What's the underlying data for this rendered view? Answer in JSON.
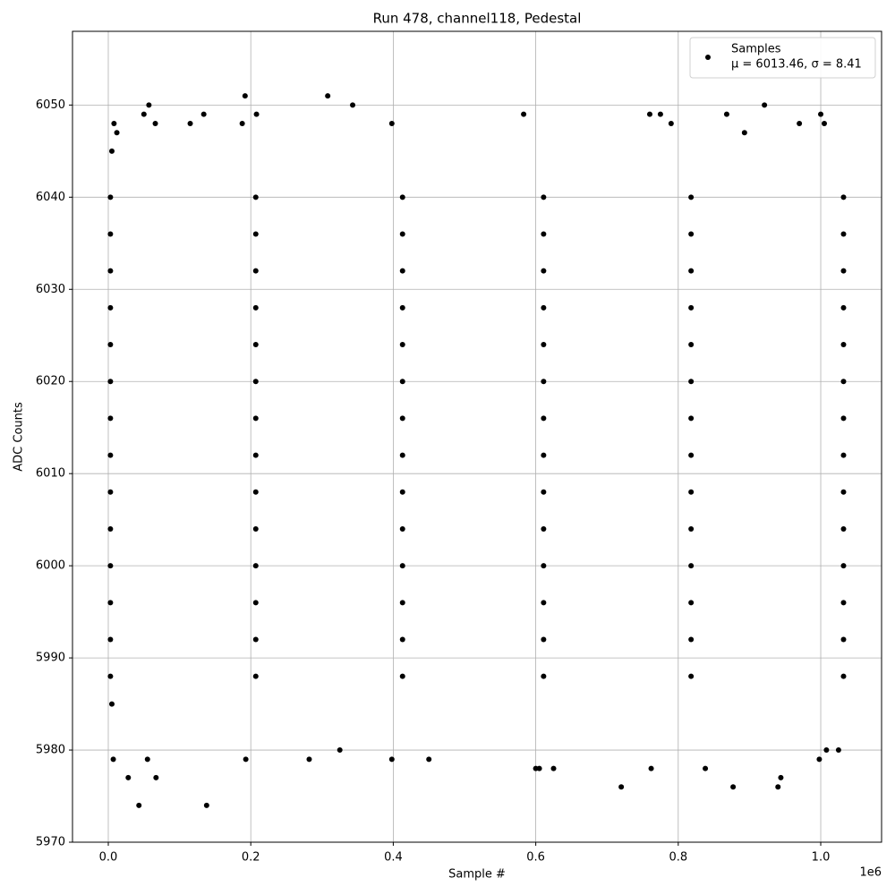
{
  "chart_data": {
    "type": "scatter",
    "title": "Run 478, channel118, Pedestal",
    "x_label": "Sample #",
    "y_label": "ADC Counts",
    "x_offset_label": "1e6",
    "xlim": [
      -50250,
      1085400
    ],
    "ylim": [
      5970,
      6058
    ],
    "xticks": [
      {
        "value": 0,
        "label": "0.0"
      },
      {
        "value": 200000,
        "label": "0.2"
      },
      {
        "value": 400000,
        "label": "0.4"
      },
      {
        "value": 600000,
        "label": "0.6"
      },
      {
        "value": 800000,
        "label": "0.8"
      },
      {
        "value": 1000000,
        "label": "1.0"
      }
    ],
    "yticks": [
      5970,
      5980,
      5990,
      6000,
      6010,
      6020,
      6030,
      6040,
      6050
    ],
    "grid": true,
    "legend_position": "upper right",
    "series": [
      {
        "name": "Samples",
        "legend_note": "μ = 6013.46, σ = 8.41",
        "color": "#000000",
        "x": [
          5000,
          8000,
          12000,
          50000,
          57000,
          66000,
          115000,
          134000,
          188000,
          192000,
          208000,
          308000,
          343000,
          398000,
          583000,
          760000,
          775000,
          790000,
          868000,
          893000,
          921000,
          970000,
          1000000,
          1005000,
          5000,
          7000,
          28000,
          43000,
          55000,
          67000,
          138000,
          193000,
          282000,
          325000,
          398000,
          450000,
          600000,
          605000,
          625000,
          720000,
          762000,
          838000,
          877000,
          940000,
          944000,
          998000,
          1025000,
          1008000,
          3000,
          207000,
          413000,
          611000,
          818000,
          1032000,
          3000,
          207000,
          413000,
          611000,
          818000,
          1032000,
          3000,
          207000,
          413000,
          611000,
          818000,
          1032000,
          3000,
          207000,
          413000,
          611000,
          818000,
          1032000,
          3000,
          207000,
          413000,
          611000,
          818000,
          1032000,
          3000,
          207000,
          413000,
          611000,
          818000,
          1032000,
          3000,
          207000,
          413000,
          611000,
          818000,
          1032000,
          3000,
          207000,
          413000,
          611000,
          818000,
          1032000,
          3000,
          207000,
          413000,
          611000,
          818000,
          1032000,
          3000,
          207000,
          413000,
          611000,
          818000,
          1032000,
          3000,
          207000,
          413000,
          611000,
          818000,
          1032000,
          3000,
          207000,
          413000,
          611000,
          818000,
          1032000,
          3000,
          207000,
          413000,
          611000,
          818000,
          1032000,
          3000,
          207000,
          413000,
          611000,
          818000,
          1032000
        ],
        "y": [
          6045,
          6048,
          6047,
          6049,
          6050,
          6048,
          6048,
          6049,
          6048,
          6051,
          6049,
          6051,
          6050,
          6048,
          6049,
          6049,
          6049,
          6048,
          6049,
          6047,
          6050,
          6048,
          6049,
          6048,
          5985,
          5979,
          5977,
          5974,
          5979,
          5977,
          5974,
          5979,
          5979,
          5980,
          5979,
          5979,
          5978,
          5978,
          5978,
          5976,
          5978,
          5978,
          5976,
          5976,
          5977,
          5979,
          5980,
          5980,
          5988,
          5988,
          5988,
          5988,
          5988,
          5988,
          5992,
          5992,
          5992,
          5992,
          5992,
          5992,
          5996,
          5996,
          5996,
          5996,
          5996,
          5996,
          6000,
          6000,
          6000,
          6000,
          6000,
          6000,
          6004,
          6004,
          6004,
          6004,
          6004,
          6004,
          6008,
          6008,
          6008,
          6008,
          6008,
          6008,
          6012,
          6012,
          6012,
          6012,
          6012,
          6012,
          6016,
          6016,
          6016,
          6016,
          6016,
          6016,
          6020,
          6020,
          6020,
          6020,
          6020,
          6020,
          6024,
          6024,
          6024,
          6024,
          6024,
          6024,
          6028,
          6028,
          6028,
          6028,
          6028,
          6028,
          6032,
          6032,
          6032,
          6032,
          6032,
          6032,
          6036,
          6036,
          6036,
          6036,
          6036,
          6036,
          6040,
          6040,
          6040,
          6040,
          6040,
          6040
        ]
      }
    ]
  }
}
